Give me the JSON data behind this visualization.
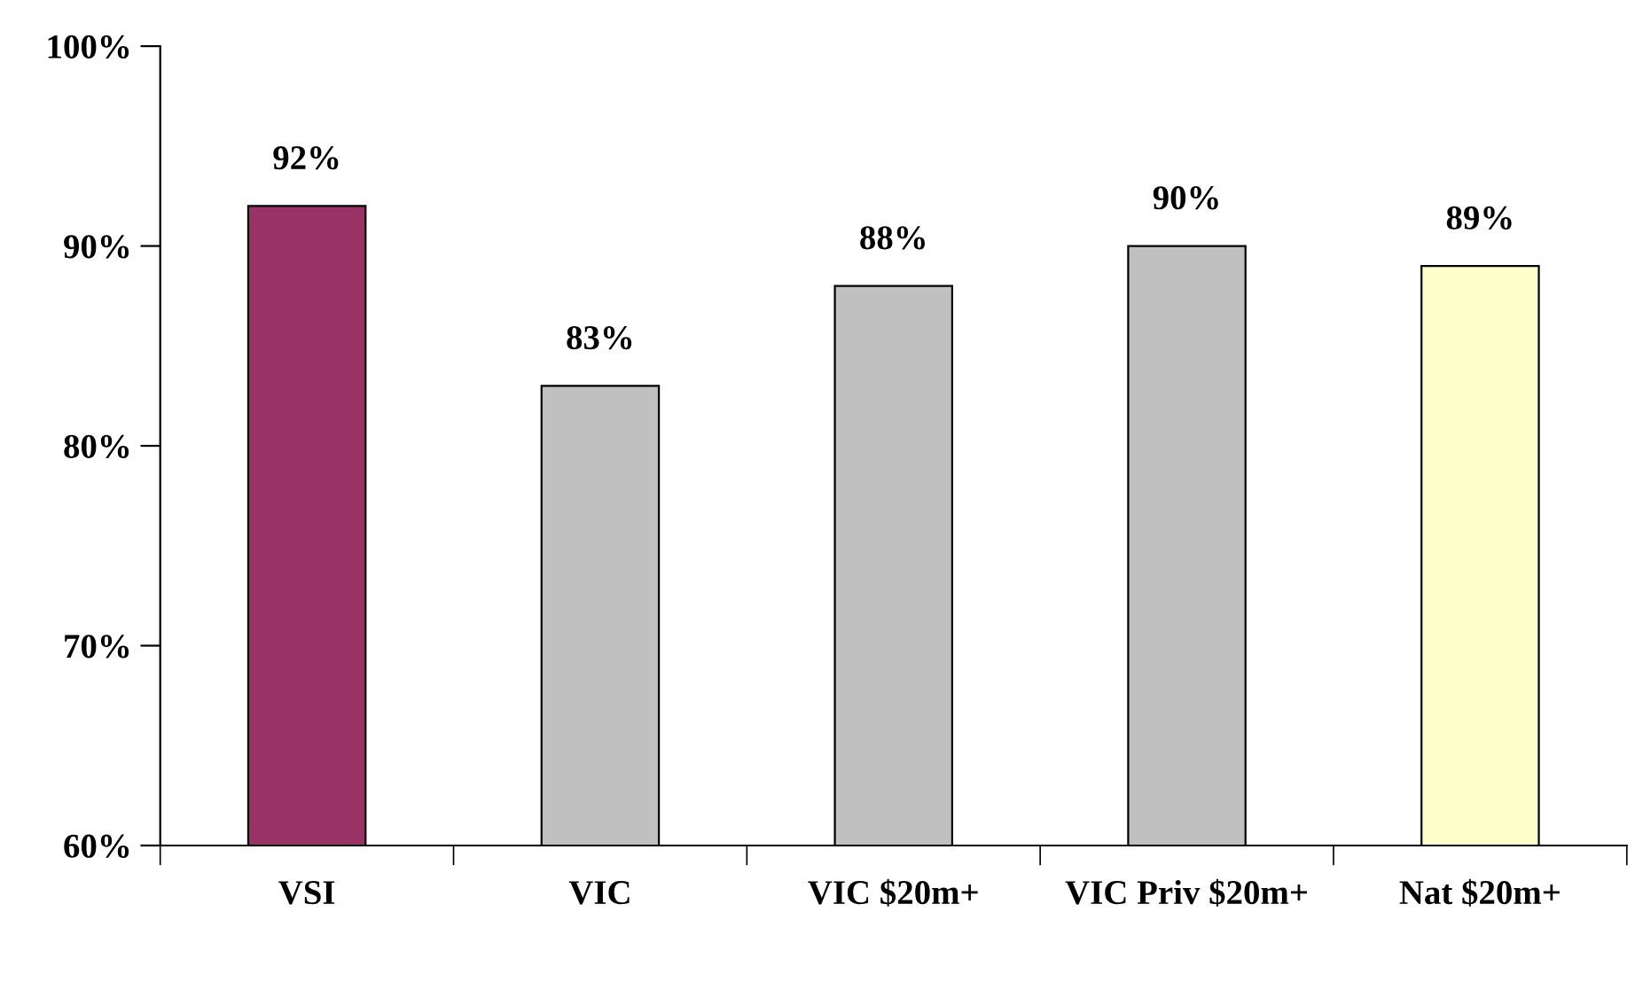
{
  "chart_data": {
    "type": "bar",
    "categories": [
      "VSI",
      "VIC",
      "VIC $20m+",
      "VIC Priv $20m+",
      "Nat $20m+"
    ],
    "values": [
      92,
      83,
      88,
      90,
      89
    ],
    "colors": [
      "#993366",
      "#c0c0c0",
      "#c0c0c0",
      "#c0c0c0",
      "#ffffcc"
    ],
    "value_labels": [
      "92%",
      "83%",
      "88%",
      "90%",
      "89%"
    ],
    "ylim": [
      60,
      100
    ],
    "yticks": [
      {
        "value": 60,
        "label": "60%"
      },
      {
        "value": 70,
        "label": "70%"
      },
      {
        "value": 80,
        "label": "80%"
      },
      {
        "value": 90,
        "label": "90%"
      },
      {
        "value": 100,
        "label": "100%"
      }
    ],
    "grid": false,
    "legend": false
  }
}
